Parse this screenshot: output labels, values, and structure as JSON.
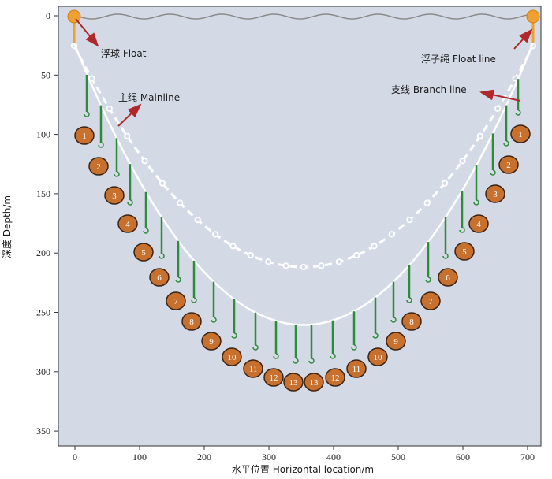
{
  "axes": {
    "x_title": "水平位置 Horizontal location/m",
    "y_title": "深度 Depth/m",
    "x_ticks": [
      "0",
      "100",
      "200",
      "300",
      "400",
      "500",
      "600",
      "700"
    ],
    "y_ticks": [
      "0",
      "50",
      "100",
      "150",
      "200",
      "250",
      "300",
      "350"
    ]
  },
  "labels": {
    "float": "浮球 Float",
    "float_line": "浮子绳 Float line",
    "mainline": "主绳 Mainline",
    "branch_line": "支线 Branch line"
  },
  "hooks_left": [
    "1",
    "2",
    "3",
    "4",
    "5",
    "6",
    "7",
    "8",
    "9",
    "10",
    "11",
    "12",
    "13"
  ],
  "hooks_right": [
    "1",
    "2",
    "3",
    "4",
    "5",
    "6",
    "7",
    "8",
    "9",
    "10",
    "11",
    "12",
    "13"
  ],
  "colors": {
    "plot_bg": "#d4dae5",
    "float": "#f0a030",
    "mainline": "#ffffff",
    "branch_line": "#2e8b3c",
    "hook_fill": "#c8702e",
    "hook_stroke": "#3a2414",
    "arrow": "#b0282c",
    "wave": "#8a8a8a"
  }
}
